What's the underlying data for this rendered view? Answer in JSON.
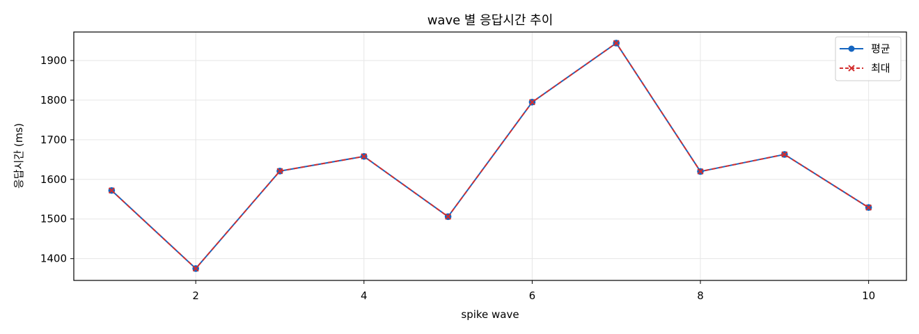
{
  "chart_data": {
    "type": "line",
    "title": "wave 별 응답시간 추이",
    "xlabel": "spike wave",
    "ylabel": "응답시간 (ms)",
    "x": [
      1,
      2,
      3,
      4,
      5,
      6,
      7,
      8,
      9,
      10
    ],
    "xlim": [
      0.55,
      10.45
    ],
    "ylim": [
      1345,
      1972
    ],
    "xticks": [
      2,
      4,
      6,
      8,
      10
    ],
    "yticks": [
      1400,
      1500,
      1600,
      1700,
      1800,
      1900
    ],
    "grid": true,
    "legend_position": "top-right",
    "series": [
      {
        "name": "평균",
        "values": [
          1572,
          1375,
          1621,
          1658,
          1506,
          1795,
          1944,
          1620,
          1663,
          1529
        ],
        "color": "#1565c0",
        "line_style": "solid",
        "marker": "circle"
      },
      {
        "name": "최대",
        "values": [
          1572,
          1375,
          1621,
          1658,
          1506,
          1795,
          1944,
          1620,
          1663,
          1529
        ],
        "color": "#d32f2f",
        "line_style": "dashed",
        "marker": "x"
      }
    ]
  }
}
